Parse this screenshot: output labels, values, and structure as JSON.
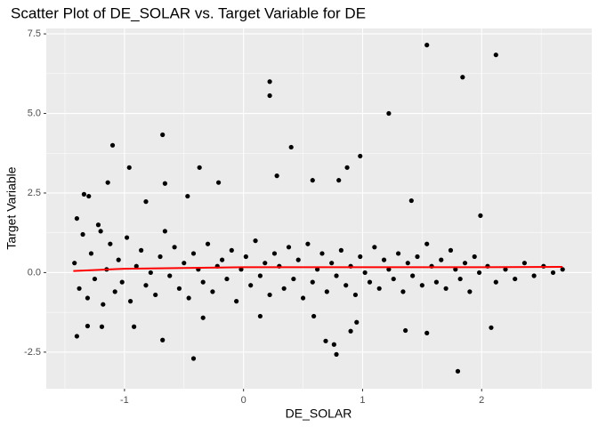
{
  "chart_data": {
    "type": "scatter",
    "title": "Scatter Plot of DE_SOLAR vs. Target Variable for DE",
    "x_label": "DE_SOLAR",
    "y_label": "Target Variable",
    "color": "#000000",
    "x": [
      -1.42,
      -1.38,
      -1.35,
      -1.31,
      -1.28,
      -1.25,
      -1.22,
      -1.18,
      -1.15,
      -1.12,
      -1.08,
      -1.05,
      -1.02,
      -0.98,
      -0.95,
      -0.9,
      -0.86,
      -0.82,
      -0.78,
      -0.74,
      -0.7,
      -0.66,
      -0.62,
      -0.58,
      -0.54,
      -0.5,
      -0.46,
      -0.42,
      -0.38,
      -0.34,
      -0.3,
      -0.26,
      -0.22,
      -0.18,
      -0.14,
      -0.1,
      -0.06,
      -0.02,
      0.02,
      0.06,
      0.1,
      0.14,
      0.18,
      0.22,
      0.26,
      0.3,
      0.34,
      0.38,
      0.42,
      0.46,
      0.5,
      0.54,
      0.58,
      0.62,
      0.66,
      0.7,
      0.74,
      0.78,
      0.82,
      0.86,
      0.9,
      0.94,
      0.98,
      1.02,
      1.06,
      1.1,
      1.14,
      1.18,
      1.22,
      1.26,
      1.3,
      1.34,
      1.38,
      1.42,
      1.46,
      1.5,
      1.54,
      1.58,
      1.62,
      1.66,
      1.7,
      1.74,
      1.78,
      1.82,
      1.86,
      1.9,
      1.94,
      1.98,
      2.05,
      2.12,
      2.2,
      2.28,
      2.36,
      2.44,
      2.52,
      2.6,
      2.68,
      -1.4,
      -1.3,
      -1.2,
      1.54,
      2.12,
      1.84,
      0.22,
      0.22,
      1.22,
      -0.68,
      -1.1,
      0.4,
      0.98,
      -0.96,
      -0.37,
      0.87,
      0.28,
      0.58,
      0.8,
      -1.14,
      -0.66,
      -0.21,
      -1.34,
      -0.82,
      -0.47,
      1.41,
      1.99,
      -0.42,
      1.8,
      0.78,
      0.76,
      0.69,
      -0.68,
      -1.4,
      1.54,
      1.36,
      2.08,
      0.9,
      0.95,
      0.14,
      0.59,
      -1.31,
      -1.19,
      -0.92,
      -0.34
    ],
    "values": [
      0.3,
      -0.5,
      1.2,
      -0.8,
      0.6,
      -0.2,
      1.5,
      -1.0,
      0.1,
      0.9,
      -0.6,
      0.4,
      -0.3,
      1.1,
      -0.9,
      0.2,
      0.7,
      -0.4,
      0.0,
      -0.7,
      0.5,
      1.3,
      -0.1,
      0.8,
      -0.5,
      0.3,
      -0.8,
      0.6,
      0.1,
      -0.3,
      0.9,
      -0.6,
      0.2,
      0.4,
      -0.2,
      0.7,
      -0.9,
      0.1,
      0.5,
      -0.4,
      1.0,
      -0.1,
      0.3,
      -0.7,
      0.6,
      0.2,
      -0.5,
      0.8,
      -0.2,
      0.4,
      -0.8,
      0.9,
      -0.3,
      0.1,
      0.6,
      -0.6,
      0.3,
      -0.1,
      0.7,
      -0.4,
      0.2,
      -0.7,
      0.5,
      0.0,
      -0.3,
      0.8,
      -0.5,
      0.4,
      0.1,
      -0.2,
      0.6,
      -0.6,
      0.3,
      -0.1,
      0.5,
      -0.4,
      0.9,
      0.2,
      -0.3,
      0.4,
      -0.5,
      0.7,
      0.1,
      -0.2,
      0.3,
      -0.6,
      0.5,
      0.0,
      0.2,
      -0.3,
      0.1,
      -0.2,
      0.3,
      -0.1,
      0.2,
      0.0,
      0.1,
      1.7,
      2.4,
      1.3,
      7.15,
      6.84,
      6.14,
      6.0,
      5.56,
      5.0,
      4.33,
      4.0,
      3.94,
      3.66,
      3.3,
      3.3,
      3.3,
      3.04,
      2.9,
      2.9,
      2.83,
      2.8,
      2.83,
      2.46,
      2.23,
      2.4,
      2.26,
      1.79,
      -2.7,
      -3.1,
      -2.57,
      -2.26,
      -2.15,
      -2.12,
      -2.0,
      -1.9,
      -1.82,
      -1.73,
      -1.84,
      -1.56,
      -1.37,
      -1.37,
      -1.68,
      -1.7,
      -1.7,
      -1.42
    ],
    "trend": {
      "x": [
        -1.43,
        -1.0,
        0.0,
        1.0,
        2.0,
        2.68
      ],
      "values": [
        0.05,
        0.12,
        0.17,
        0.17,
        0.17,
        0.18
      ],
      "color": "#ff0000"
    },
    "xlim": [
      -1.657,
      2.925
    ],
    "xticks": [
      -1,
      0,
      1,
      2
    ],
    "ylim": [
      -3.65,
      7.67
    ],
    "yticks": [
      {
        "value": -2.5,
        "label": "-2.5"
      },
      {
        "value": 0,
        "label": "0.0"
      },
      {
        "value": 2.5,
        "label": "2.5"
      },
      {
        "value": 5,
        "label": "5.0"
      },
      {
        "value": 7.5,
        "label": "7.5"
      }
    ],
    "grid": true
  }
}
